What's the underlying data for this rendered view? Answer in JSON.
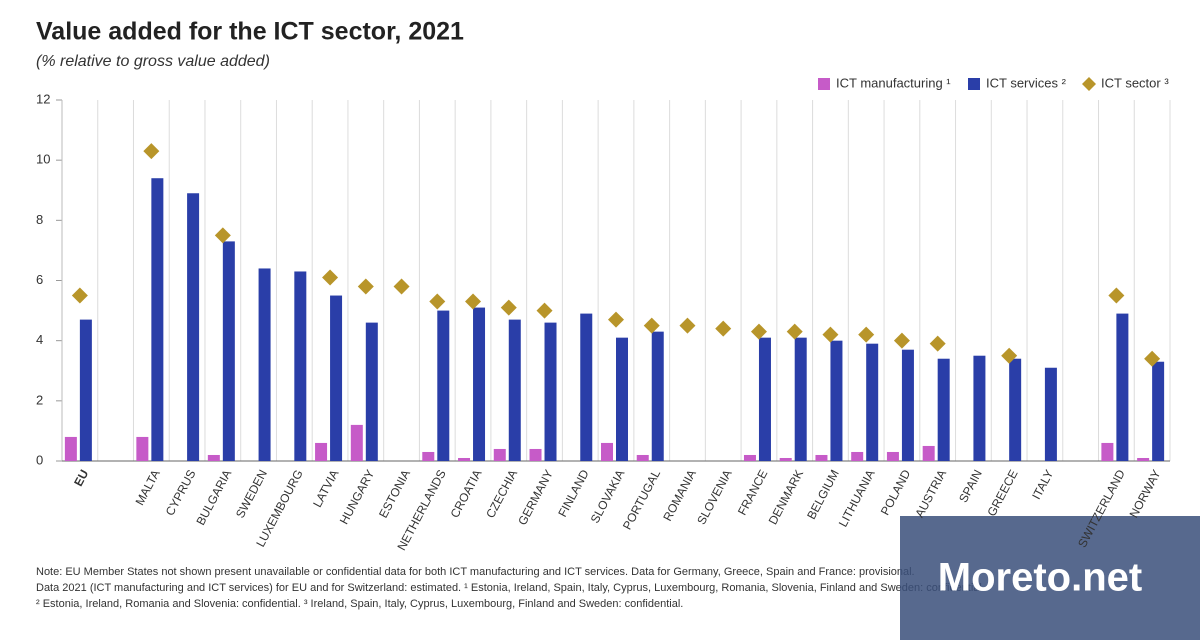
{
  "chart_data": {
    "type": "bar",
    "title": "Value added for the ICT sector, 2021",
    "subtitle": "(% relative to gross value added)",
    "categories": [
      "EU",
      null,
      "MALTA",
      "CYPRUS",
      "BULGARIA",
      "SWEDEN",
      "LUXEMBOURG",
      "LATVIA",
      "HUNGARY",
      "ESTONIA",
      "NETHERLANDS",
      "CROATIA",
      "CZECHIA",
      "GERMANY",
      "FINLAND",
      "SLOVAKIA",
      "PORTUGAL",
      "ROMANIA",
      "SLOVENIA",
      "FRANCE",
      "DENMARK",
      "BELGIUM",
      "LITHUANIA",
      "POLAND",
      "AUSTRIA",
      "SPAIN",
      "GREECE",
      "ITALY",
      null,
      "SWITZERLAND",
      "NORWAY"
    ],
    "series": [
      {
        "name": "ICT manufacturing ¹",
        "color": "#c65bc8",
        "mark": "bar",
        "values": [
          0.8,
          null,
          0.8,
          null,
          0.2,
          null,
          null,
          0.6,
          1.2,
          null,
          0.3,
          0.1,
          0.4,
          0.4,
          null,
          0.6,
          0.2,
          null,
          null,
          0.2,
          0.1,
          0.2,
          0.3,
          0.3,
          0.5,
          null,
          null,
          null,
          null,
          0.6,
          0.1
        ]
      },
      {
        "name": "ICT services ²",
        "color": "#2a3ea8",
        "mark": "bar",
        "values": [
          4.7,
          null,
          9.4,
          8.9,
          7.3,
          6.4,
          6.3,
          5.5,
          4.6,
          null,
          5.0,
          5.1,
          4.7,
          4.6,
          4.9,
          4.1,
          4.3,
          null,
          null,
          4.1,
          4.1,
          4.0,
          3.9,
          3.7,
          3.4,
          3.5,
          3.4,
          3.1,
          null,
          4.9,
          3.3
        ]
      },
      {
        "name": "ICT sector ³",
        "color": "#b8952a",
        "mark": "diamond",
        "values": [
          5.5,
          null,
          10.3,
          null,
          7.5,
          null,
          null,
          6.1,
          5.8,
          5.8,
          5.3,
          5.3,
          5.1,
          5.0,
          null,
          4.7,
          4.5,
          4.5,
          4.4,
          4.3,
          4.3,
          4.2,
          4.2,
          4.0,
          3.9,
          null,
          3.5,
          null,
          null,
          5.5,
          3.4
        ]
      }
    ],
    "ylim": [
      0,
      12
    ],
    "yticks": [
      0,
      2,
      4,
      6,
      8,
      10,
      12
    ],
    "grid": true,
    "legend": "top-right",
    "notes": [
      "Note: EU Member States not shown present unavailable or confidential data for both ICT manufacturing and ICT services. Data for Germany, Greece, Spain and France: provisional.",
      "Data 2021 (ICT manufacturing and ICT services) for EU and for Switzerland: estimated. ¹ Estonia, Ireland, Spain, Italy, Cyprus, Luxembourg, Romania, Slovenia, Finland and Sweden: confidential.",
      "² Estonia, Ireland, Romania and Slovenia: confidential. ³ Ireland, Spain, Italy, Cyprus, Luxembourg, Finland and Sweden: confidential."
    ],
    "watermark": "Moreto.net"
  }
}
